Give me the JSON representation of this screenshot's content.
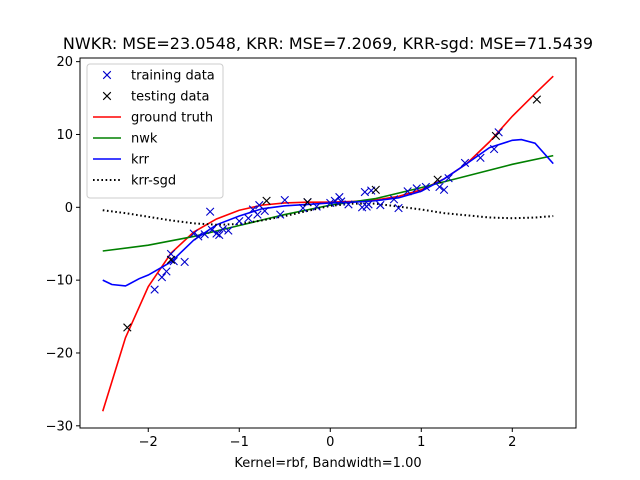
{
  "chart_data": {
    "type": "scatter",
    "title": "NWKR: MSE=23.0548, KRR: MSE=7.2069, KRR-sgd: MSE=71.5439",
    "xlabel": "Kernel=rbf, Bandwidth=1.00",
    "ylabel": "",
    "xlim": [
      -2.75,
      2.7
    ],
    "ylim": [
      -30.3,
      20.5
    ],
    "xticks": [
      -2,
      -1,
      0,
      1,
      2
    ],
    "yticks": [
      -30,
      -20,
      -10,
      0,
      10,
      20
    ],
    "legend_position": "upper-left",
    "series": [
      {
        "name": "training data",
        "kind": "scatter",
        "marker": "x",
        "color": "#0000cc",
        "points": [
          [
            -1.93,
            -11.3
          ],
          [
            -1.85,
            -9.6
          ],
          [
            -1.8,
            -8.8
          ],
          [
            -1.75,
            -6.4
          ],
          [
            -1.72,
            -7.4
          ],
          [
            -1.6,
            -7.5
          ],
          [
            -1.5,
            -3.6
          ],
          [
            -1.45,
            -4.0
          ],
          [
            -1.38,
            -3.7
          ],
          [
            -1.32,
            -0.6
          ],
          [
            -1.3,
            -3.1
          ],
          [
            -1.25,
            -3.6
          ],
          [
            -1.22,
            -3.8
          ],
          [
            -1.18,
            -3.0
          ],
          [
            -1.12,
            -3.2
          ],
          [
            -1.0,
            -1.9
          ],
          [
            -0.9,
            -1.5
          ],
          [
            -0.85,
            -0.3
          ],
          [
            -0.8,
            -1.0
          ],
          [
            -0.78,
            0.3
          ],
          [
            -0.72,
            -0.5
          ],
          [
            -0.55,
            -1.0
          ],
          [
            -0.5,
            1.0
          ],
          [
            -0.3,
            -0.1
          ],
          [
            -0.25,
            0.7
          ],
          [
            -0.15,
            0.1
          ],
          [
            0.0,
            0.6
          ],
          [
            0.05,
            0.9
          ],
          [
            0.1,
            1.4
          ],
          [
            0.12,
            0.8
          ],
          [
            0.2,
            0.4
          ],
          [
            0.35,
            0.0
          ],
          [
            0.38,
            2.1
          ],
          [
            0.4,
            0.1
          ],
          [
            0.42,
            0.4
          ],
          [
            0.45,
            2.3
          ],
          [
            0.55,
            0.3
          ],
          [
            0.7,
            1.1
          ],
          [
            0.75,
            -0.1
          ],
          [
            0.85,
            2.2
          ],
          [
            0.95,
            2.6
          ],
          [
            1.05,
            2.8
          ],
          [
            1.2,
            2.8
          ],
          [
            1.25,
            2.4
          ],
          [
            1.3,
            4.0
          ],
          [
            1.48,
            6.1
          ],
          [
            1.65,
            6.8
          ],
          [
            1.8,
            8.0
          ],
          [
            1.85,
            10.3
          ]
        ]
      },
      {
        "name": "testing data",
        "kind": "scatter",
        "marker": "x",
        "color": "#000000",
        "points": [
          [
            -2.23,
            -16.5
          ],
          [
            -1.75,
            -7.2
          ],
          [
            -0.7,
            0.9
          ],
          [
            -0.25,
            0.7
          ],
          [
            0.5,
            2.4
          ],
          [
            1.18,
            3.8
          ],
          [
            1.82,
            9.8
          ],
          [
            2.27,
            14.8
          ]
        ]
      },
      {
        "name": "ground truth",
        "kind": "line",
        "style": "solid",
        "color": "#ff0000",
        "x": [
          -2.5,
          -2.25,
          -2.0,
          -1.75,
          -1.5,
          -1.25,
          -1.0,
          -0.75,
          -0.5,
          -0.25,
          0.0,
          0.25,
          0.5,
          0.75,
          1.0,
          1.25,
          1.5,
          1.75,
          2.0,
          2.25,
          2.45
        ],
        "y": [
          -28.0,
          -17.9,
          -10.9,
          -6.3,
          -3.4,
          -1.6,
          -0.4,
          0.3,
          0.6,
          0.7,
          0.7,
          0.8,
          1.0,
          1.5,
          2.4,
          3.9,
          6.0,
          9.0,
          12.5,
          15.6,
          18.0
        ]
      },
      {
        "name": "nwk",
        "kind": "line",
        "style": "solid",
        "color": "#008000",
        "x": [
          -2.5,
          -2.0,
          -1.5,
          -1.0,
          -0.5,
          0.0,
          0.5,
          1.0,
          1.5,
          2.0,
          2.45
        ],
        "y": [
          -6.0,
          -5.2,
          -4.0,
          -2.5,
          -1.0,
          0.3,
          1.2,
          2.7,
          4.3,
          5.9,
          7.1
        ]
      },
      {
        "name": "krr",
        "kind": "line",
        "style": "solid",
        "color": "#0000ff",
        "x": [
          -2.5,
          -2.4,
          -2.25,
          -2.1,
          -2.0,
          -1.75,
          -1.5,
          -1.25,
          -1.0,
          -0.75,
          -0.5,
          -0.25,
          0.0,
          0.25,
          0.5,
          0.75,
          1.0,
          1.25,
          1.5,
          1.75,
          2.0,
          2.1,
          2.25,
          2.45
        ],
        "y": [
          -10.0,
          -10.6,
          -10.8,
          -9.8,
          -9.3,
          -7.5,
          -4.5,
          -2.4,
          -1.2,
          -0.2,
          0.2,
          0.4,
          0.6,
          0.7,
          0.9,
          1.3,
          2.2,
          3.9,
          6.0,
          8.2,
          9.2,
          9.3,
          8.8,
          6.0
        ]
      },
      {
        "name": "krr-sgd",
        "kind": "line",
        "style": "dotted",
        "color": "#000000",
        "x": [
          -2.5,
          -2.25,
          -2.0,
          -1.75,
          -1.5,
          -1.25,
          -1.0,
          -0.75,
          -0.5,
          -0.25,
          0.0,
          0.25,
          0.5,
          0.75,
          1.0,
          1.25,
          1.5,
          1.75,
          2.0,
          2.25,
          2.45
        ],
        "y": [
          -0.4,
          -0.8,
          -1.3,
          -1.8,
          -2.2,
          -2.4,
          -2.3,
          -1.8,
          -1.2,
          -0.5,
          0.2,
          0.5,
          0.5,
          0.1,
          -0.3,
          -0.8,
          -1.1,
          -1.4,
          -1.5,
          -1.4,
          -1.2
        ]
      }
    ]
  }
}
